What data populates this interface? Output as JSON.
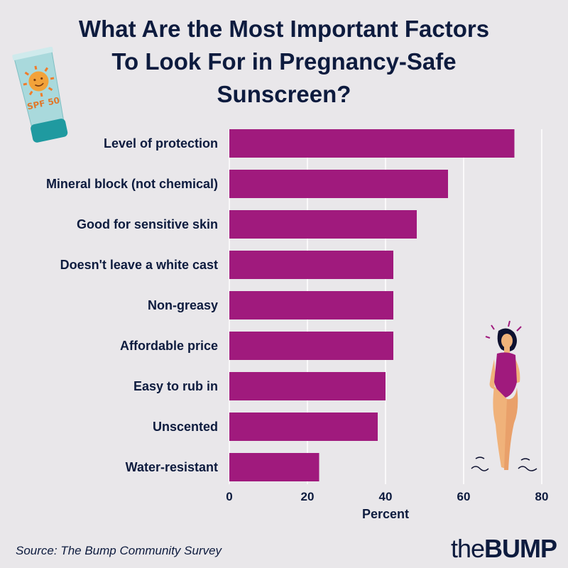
{
  "title_lines": [
    "What Are the Most Important Factors",
    "To Look For in Pregnancy-Safe",
    "Sunscreen?"
  ],
  "source": "Source: The Bump Community Survey",
  "logo": {
    "the": "the",
    "bump": "BUMP"
  },
  "tube_text": "SPF 50",
  "colors": {
    "bar": "#a01a7d",
    "background": "#e9e7ea",
    "text": "#0d1b3e",
    "grid": "#ffffff"
  },
  "chart_data": {
    "type": "bar",
    "orientation": "horizontal",
    "categories": [
      "Level of protection",
      "Mineral block (not chemical)",
      "Good for sensitive skin",
      "Doesn't leave a white cast",
      "Non-greasy",
      "Affordable price",
      "Easy to rub in",
      "Unscented",
      "Water-resistant"
    ],
    "values": [
      73,
      56,
      48,
      42,
      42,
      42,
      40,
      38,
      23
    ],
    "xlabel": "Percent",
    "xlim": [
      0,
      80
    ],
    "xticks": [
      0,
      20,
      40,
      60,
      80
    ],
    "grid": true
  }
}
